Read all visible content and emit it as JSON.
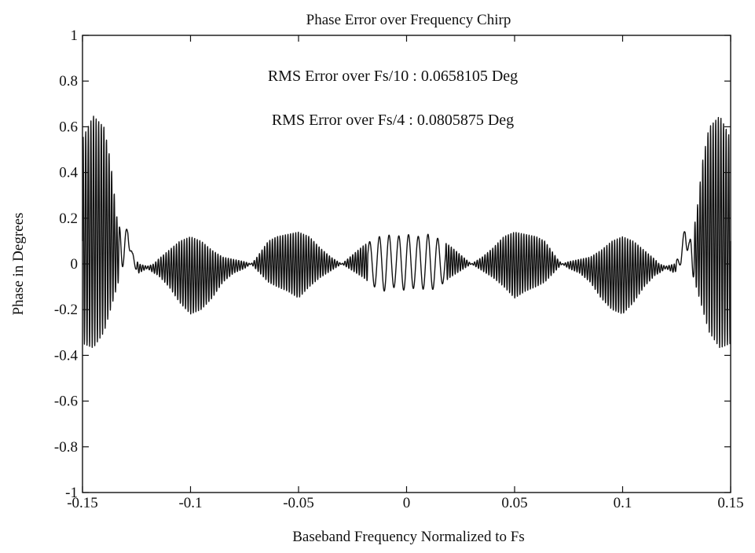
{
  "chart_data": {
    "type": "line",
    "title": "Phase Error over Frequency Chirp",
    "xlabel": "Baseband Frequency Normalized to Fs",
    "ylabel": "Phase in Degrees",
    "xlim": [
      -0.15,
      0.15
    ],
    "ylim": [
      -1,
      1
    ],
    "x_ticks": [
      -0.15,
      -0.1,
      -0.05,
      0,
      0.05,
      0.1,
      0.15
    ],
    "x_tick_labels": [
      "-0.15",
      "-0.1",
      "-0.05",
      "0",
      "0.05",
      "0.1",
      "0.15"
    ],
    "y_ticks": [
      1,
      0.8,
      0.6,
      0.4,
      0.2,
      0,
      -0.2,
      -0.4,
      -0.6,
      -0.8,
      -1
    ],
    "y_tick_labels": [
      "1",
      "0.8",
      "0.6",
      "0.4",
      "0.2",
      "0",
      "-0.2",
      "-0.4",
      "-0.6",
      "-0.8",
      "-1"
    ],
    "grid": false,
    "annotations": [
      "RMS Error over Fs/10 : 0.0658105 Deg",
      "RMS Error over Fs/4 : 0.0805875 Deg"
    ],
    "envelope": {
      "x": [
        -0.15,
        -0.145,
        -0.14,
        -0.137,
        -0.134,
        -0.131,
        -0.129,
        -0.127,
        -0.124,
        -0.12,
        -0.117,
        -0.115,
        -0.11,
        -0.105,
        -0.1,
        -0.095,
        -0.09,
        -0.085,
        -0.08,
        -0.075,
        -0.072,
        -0.07,
        -0.067,
        -0.064,
        -0.06,
        -0.055,
        -0.05,
        -0.045,
        -0.04,
        -0.035,
        -0.03,
        -0.025,
        -0.02,
        -0.015,
        -0.01,
        -0.005,
        0,
        0.005,
        0.01,
        0.015,
        0.02,
        0.025,
        0.03,
        0.035,
        0.04,
        0.045,
        0.05,
        0.055,
        0.06,
        0.064,
        0.067,
        0.07,
        0.072,
        0.075,
        0.08,
        0.085,
        0.09,
        0.095,
        0.1,
        0.105,
        0.11,
        0.115,
        0.117,
        0.12,
        0.124,
        0.127,
        0.129,
        0.131,
        0.134,
        0.137,
        0.14,
        0.145,
        0.15
      ],
      "upper": [
        0.55,
        0.65,
        0.6,
        0.45,
        0.2,
        0.1,
        0.18,
        0.05,
        0.0,
        -0.01,
        0.0,
        0.02,
        0.06,
        0.1,
        0.12,
        0.1,
        0.06,
        0.03,
        0.02,
        0.01,
        0.0,
        0.02,
        0.06,
        0.1,
        0.12,
        0.13,
        0.14,
        0.12,
        0.07,
        0.03,
        0.0,
        0.04,
        0.08,
        0.11,
        0.13,
        0.12,
        0.13,
        0.12,
        0.13,
        0.11,
        0.08,
        0.04,
        0.0,
        0.03,
        0.07,
        0.12,
        0.14,
        0.13,
        0.12,
        0.1,
        0.06,
        0.02,
        0.0,
        0.01,
        0.02,
        0.03,
        0.06,
        0.1,
        0.12,
        0.1,
        0.06,
        0.02,
        0.0,
        -0.01,
        0.0,
        0.05,
        0.18,
        0.1,
        0.2,
        0.45,
        0.6,
        0.65,
        0.55
      ],
      "lower": [
        -0.35,
        -0.37,
        -0.3,
        -0.2,
        -0.1,
        0.0,
        0.1,
        0.0,
        -0.04,
        -0.02,
        -0.04,
        -0.05,
        -0.1,
        -0.17,
        -0.22,
        -0.2,
        -0.15,
        -0.08,
        -0.04,
        -0.02,
        0.0,
        -0.02,
        -0.05,
        -0.08,
        -0.1,
        -0.12,
        -0.15,
        -0.1,
        -0.06,
        -0.03,
        0.0,
        -0.03,
        -0.06,
        -0.1,
        -0.12,
        -0.1,
        -0.12,
        -0.1,
        -0.12,
        -0.1,
        -0.06,
        -0.03,
        0.0,
        -0.03,
        -0.06,
        -0.1,
        -0.15,
        -0.12,
        -0.1,
        -0.08,
        -0.05,
        -0.02,
        0.0,
        -0.02,
        -0.04,
        -0.08,
        -0.15,
        -0.2,
        -0.22,
        -0.17,
        -0.1,
        -0.05,
        -0.04,
        -0.02,
        -0.04,
        0.0,
        0.1,
        0.0,
        -0.1,
        -0.2,
        -0.3,
        -0.37,
        -0.35
      ]
    }
  }
}
